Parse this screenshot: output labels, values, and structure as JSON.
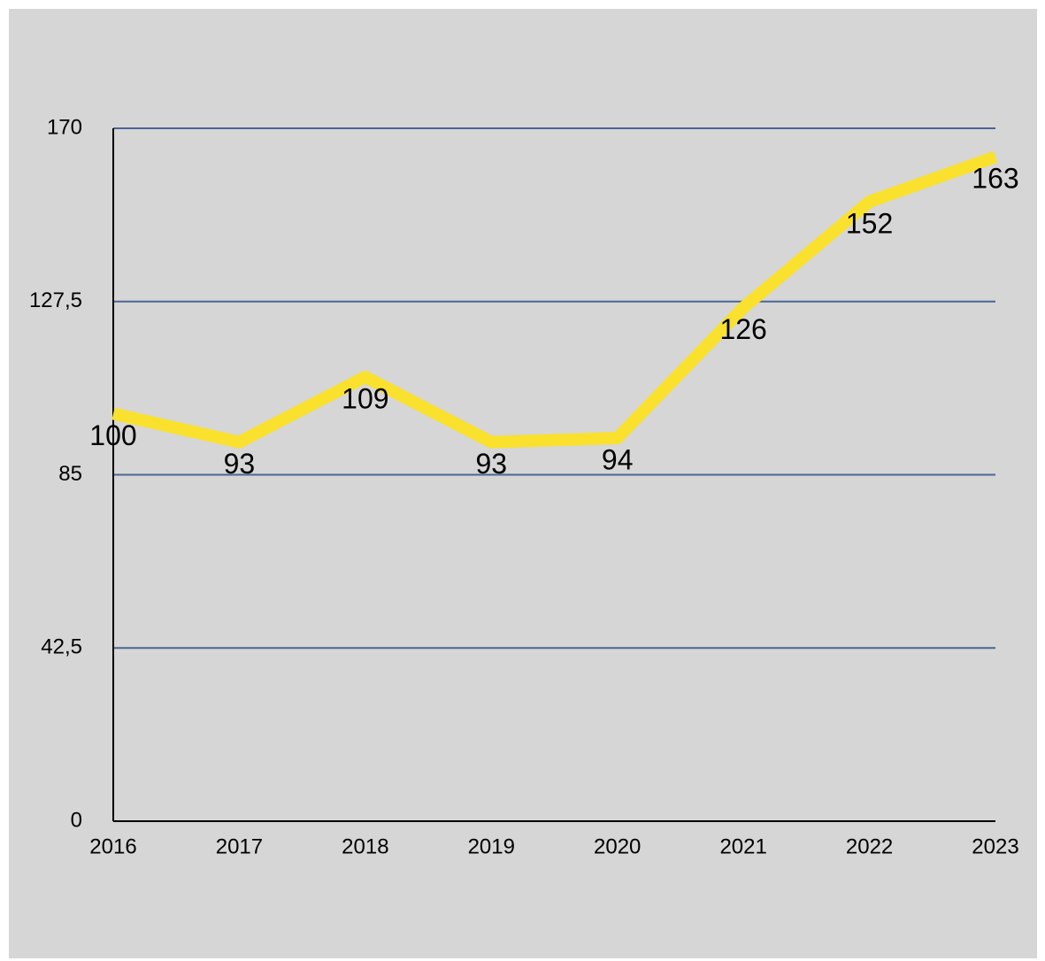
{
  "chart_data": {
    "type": "line",
    "categories": [
      "2016",
      "2017",
      "2018",
      "2019",
      "2020",
      "2021",
      "2022",
      "2023"
    ],
    "values": [
      100,
      93,
      109,
      93,
      94,
      126,
      152,
      163
    ],
    "color": "#f9e12e",
    "ylim": [
      0,
      170
    ],
    "yticks": [
      0,
      {
        "value": 42.5,
        "label": "42,5"
      },
      85,
      {
        "value": 127.5,
        "label": "127,5"
      },
      170
    ],
    "grid": true,
    "data_labels": true
  }
}
